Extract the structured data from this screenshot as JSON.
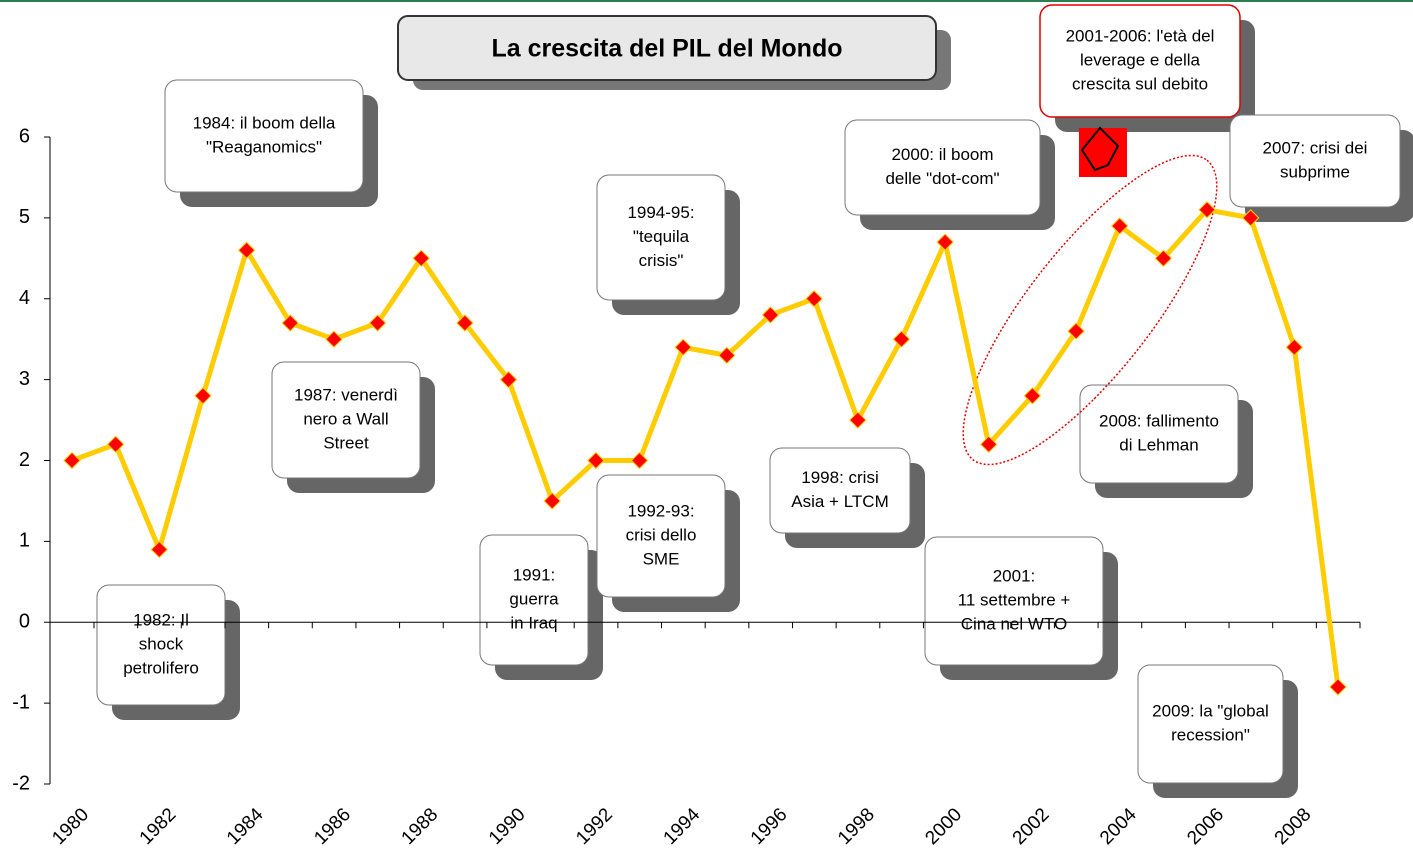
{
  "chart_data": {
    "type": "line",
    "title": "La crescita del PIL del Mondo",
    "x": [
      1980,
      1981,
      1982,
      1983,
      1984,
      1985,
      1986,
      1987,
      1988,
      1989,
      1990,
      1991,
      1992,
      1993,
      1994,
      1995,
      1996,
      1997,
      1998,
      1999,
      2000,
      2001,
      2002,
      2003,
      2004,
      2005,
      2006,
      2007,
      2008,
      2009
    ],
    "series": [
      {
        "name": "PIL",
        "color": "#ffcc00",
        "marker_color": "#ff0000",
        "values": [
          2.0,
          2.2,
          0.9,
          2.8,
          4.6,
          3.7,
          3.5,
          3.7,
          4.5,
          3.7,
          3.0,
          1.5,
          2.0,
          2.0,
          3.4,
          3.3,
          3.8,
          4.0,
          2.5,
          3.5,
          4.7,
          2.2,
          2.8,
          3.6,
          4.9,
          4.5,
          5.1,
          5.0,
          3.4,
          -0.8
        ]
      }
    ],
    "xlim": [
      1979.5,
      2009.5
    ],
    "xticks": [
      1980,
      1982,
      1984,
      1986,
      1988,
      1990,
      1992,
      1994,
      1996,
      1998,
      2000,
      2002,
      2004,
      2006,
      2008
    ],
    "ylim": [
      -2,
      6
    ],
    "yticks": [
      -2,
      -1,
      0,
      1,
      2,
      3,
      4,
      5,
      6
    ],
    "annotations": [
      {
        "lines": [
          "1984: il boom della",
          "\"Reaganomics\""
        ]
      },
      {
        "lines": [
          "1982: Il",
          "shock",
          "petrolifero"
        ]
      },
      {
        "lines": [
          "1987: venerdì",
          "nero a Wall",
          "Street"
        ]
      },
      {
        "lines": [
          "1991:",
          "guerra",
          "in Iraq"
        ]
      },
      {
        "lines": [
          "1992-93:",
          "crisi dello",
          "SME"
        ]
      },
      {
        "lines": [
          "1994-95:",
          "\"tequila",
          "crisis\""
        ]
      },
      {
        "lines": [
          "1998: crisi",
          "Asia + LTCM"
        ]
      },
      {
        "lines": [
          "2000: il boom",
          "delle \"dot-com\""
        ]
      },
      {
        "lines": [
          "2001:",
          "11 settembre +",
          "Cina nel WTO"
        ]
      },
      {
        "lines": [
          "2001-2006: l'età del",
          "leverage e della",
          "crescita sul debito"
        ]
      },
      {
        "lines": [
          "2007: crisi dei",
          "subprime"
        ]
      },
      {
        "lines": [
          "2008: fallimento",
          "di Lehman"
        ]
      },
      {
        "lines": [
          "2009: la \"global",
          "recession\""
        ]
      }
    ]
  }
}
